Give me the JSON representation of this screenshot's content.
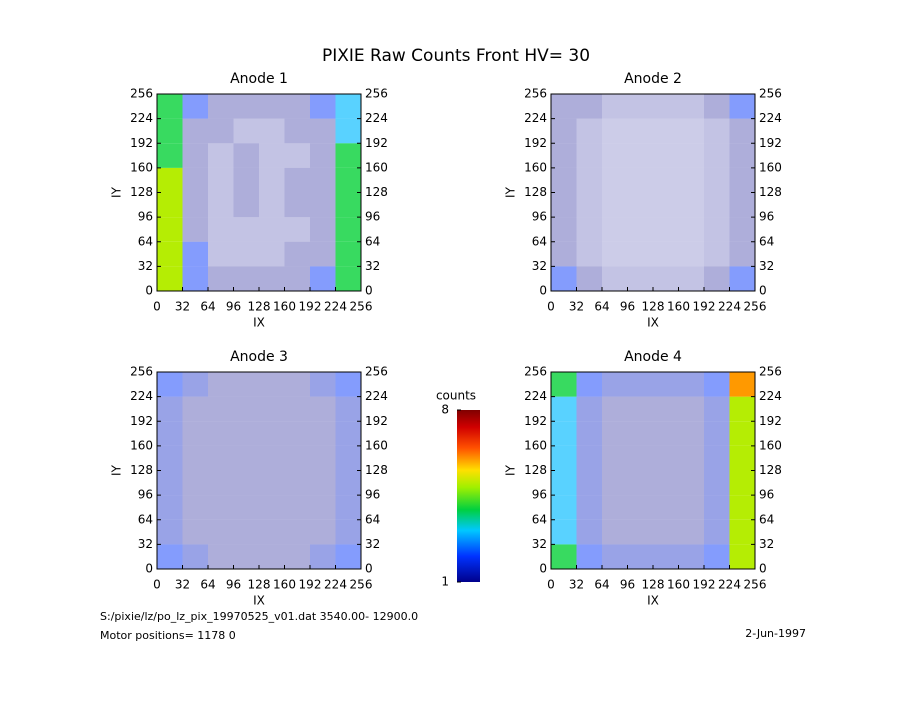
{
  "title": "PIXIE Raw Counts Front HV= 30",
  "chart_data": [
    {
      "type": "heatmap",
      "title": "Anode 1",
      "xlabel": "IX",
      "ylabel": "IY",
      "xlim": [
        0,
        256
      ],
      "ylim": [
        0,
        256
      ],
      "xticks": [
        0,
        32,
        64,
        96,
        128,
        160,
        192,
        224,
        256
      ],
      "yticks": [
        0,
        32,
        64,
        96,
        128,
        160,
        192,
        224,
        256
      ],
      "values": [
        [
          5,
          2,
          1,
          1,
          1,
          1,
          2,
          4
        ],
        [
          5,
          2,
          0.5,
          0.5,
          0.5,
          1,
          1,
          4
        ],
        [
          5,
          1,
          0.5,
          0.5,
          0.5,
          0.5,
          1,
          4
        ],
        [
          5,
          1,
          0.5,
          1,
          0.5,
          1,
          1,
          4
        ],
        [
          5,
          1,
          0.5,
          1,
          0.5,
          1,
          1,
          4
        ],
        [
          4,
          1,
          0.5,
          1,
          0.5,
          0.5,
          1,
          4
        ],
        [
          4,
          1,
          1,
          0.5,
          0.5,
          1,
          1,
          3
        ],
        [
          4,
          2,
          1,
          1,
          1,
          1,
          2,
          3
        ]
      ]
    },
    {
      "type": "heatmap",
      "title": "Anode 2",
      "xlabel": "IX",
      "ylabel": "IY",
      "xlim": [
        0,
        256
      ],
      "ylim": [
        0,
        256
      ],
      "xticks": [
        0,
        32,
        64,
        96,
        128,
        160,
        192,
        224,
        256
      ],
      "yticks": [
        0,
        32,
        64,
        96,
        128,
        160,
        192,
        224,
        256
      ],
      "values": [
        [
          2,
          1,
          0.5,
          0.5,
          0.5,
          0.5,
          1,
          2
        ],
        [
          1,
          0.5,
          0.3,
          0.3,
          0.3,
          0.3,
          0.5,
          1
        ],
        [
          1,
          0.5,
          0.3,
          0.3,
          0.3,
          0.3,
          0.5,
          1
        ],
        [
          1,
          0.5,
          0.3,
          0.3,
          0.3,
          0.3,
          0.5,
          1
        ],
        [
          1,
          0.5,
          0.3,
          0.3,
          0.3,
          0.3,
          0.5,
          1
        ],
        [
          1,
          0.5,
          0.3,
          0.3,
          0.3,
          0.3,
          0.5,
          1
        ],
        [
          1,
          0.5,
          0.3,
          0.3,
          0.3,
          0.3,
          0.5,
          1
        ],
        [
          1,
          1,
          0.5,
          0.5,
          0.5,
          0.5,
          1,
          2
        ]
      ]
    },
    {
      "type": "heatmap",
      "title": "Anode 3",
      "xlabel": "IX",
      "ylabel": "IY",
      "xlim": [
        0,
        256
      ],
      "ylim": [
        0,
        256
      ],
      "xticks": [
        0,
        32,
        64,
        96,
        128,
        160,
        192,
        224,
        256
      ],
      "yticks": [
        0,
        32,
        64,
        96,
        128,
        160,
        192,
        224,
        256
      ],
      "values": [
        [
          2,
          1.5,
          1,
          1,
          1,
          1,
          1.5,
          2
        ],
        [
          1.5,
          1,
          1,
          1,
          1,
          1,
          1,
          1.5
        ],
        [
          1.5,
          1,
          1,
          1,
          1,
          1,
          1,
          1.5
        ],
        [
          1.5,
          1,
          1,
          1,
          1,
          1,
          1,
          1.5
        ],
        [
          1.5,
          1,
          1,
          1,
          1,
          1,
          1,
          1.5
        ],
        [
          1.5,
          1,
          1,
          1,
          1,
          1,
          1,
          1.5
        ],
        [
          1.5,
          1,
          1,
          1,
          1,
          1,
          1,
          1.5
        ],
        [
          2,
          1.5,
          1,
          1,
          1,
          1,
          1.5,
          2
        ]
      ]
    },
    {
      "type": "heatmap",
      "title": "Anode 4",
      "xlabel": "IX",
      "ylabel": "IY",
      "xlim": [
        0,
        256
      ],
      "ylim": [
        0,
        256
      ],
      "xticks": [
        0,
        32,
        64,
        96,
        128,
        160,
        192,
        224,
        256
      ],
      "yticks": [
        0,
        32,
        64,
        96,
        128,
        160,
        192,
        224,
        256
      ],
      "values": [
        [
          4,
          2,
          1.5,
          1.5,
          1.5,
          1.5,
          2,
          5
        ],
        [
          3,
          1.5,
          1,
          1,
          1,
          1,
          1.5,
          5
        ],
        [
          3,
          1.5,
          1,
          1,
          1,
          1,
          1.5,
          5
        ],
        [
          3,
          1.5,
          1,
          1,
          1,
          1,
          1.5,
          5
        ],
        [
          3,
          1.5,
          1,
          1,
          1,
          1,
          1.5,
          5
        ],
        [
          3,
          1.5,
          1,
          1,
          1,
          1,
          1.5,
          5
        ],
        [
          3,
          1.5,
          1,
          1,
          1,
          1,
          1.5,
          5
        ],
        [
          4,
          2,
          1.5,
          1.5,
          1.5,
          1.5,
          2,
          6
        ]
      ]
    }
  ],
  "colorbar": {
    "label": "counts",
    "zlim": [
      1,
      8
    ],
    "zticks": [
      1,
      8
    ]
  },
  "footer": {
    "file": "S:/pixie/lz/po_lz_pix_19970525_v01.dat    3540.00- 12900.0",
    "motor": "Motor positions= 1178 0",
    "date": "2-Jun-1997"
  }
}
